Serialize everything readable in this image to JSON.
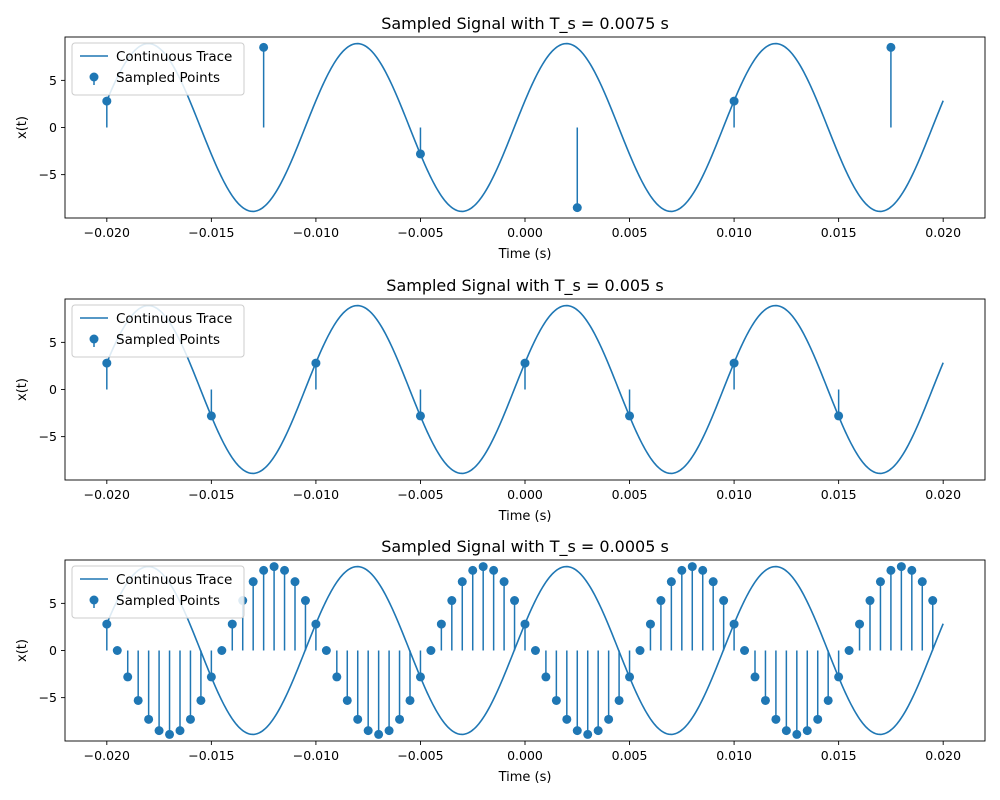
{
  "chart_data": [
    {
      "type": "line",
      "title": "Sampled Signal with T_s = 0.0075 s",
      "xlabel": "Time (s)",
      "ylabel": "x(t)",
      "xlim": [
        -0.022,
        0.022
      ],
      "ylim": [
        -9.6,
        9.6
      ],
      "xticks": [
        -0.02,
        -0.015,
        -0.01,
        -0.005,
        0.0,
        0.005,
        0.01,
        0.015,
        0.02
      ],
      "xtick_labels": [
        "−0.020",
        "−0.015",
        "−0.010",
        "−0.005",
        "0.000",
        "0.005",
        "0.010",
        "0.015",
        "0.020"
      ],
      "yticks": [
        -5,
        0,
        5
      ],
      "ytick_labels": [
        "−5",
        "0",
        "5"
      ],
      "grid": false,
      "legend_position": "top-left",
      "color": "#1f77b4",
      "continuous": {
        "name": "Continuous Trace",
        "amplitude": 8.9,
        "frequency_hz": 100,
        "phase_rad": 0.325,
        "t_range": [
          -0.02,
          0.02
        ]
      },
      "sampled": {
        "name": "Sampled Points",
        "x": [
          -0.02,
          -0.0125,
          -0.005,
          0.0025,
          0.01,
          0.0175
        ],
        "y": [
          2.8,
          8.5,
          -2.8,
          -8.5,
          2.8,
          8.5
        ]
      }
    },
    {
      "type": "line",
      "title": "Sampled Signal with T_s = 0.005 s",
      "xlabel": "Time (s)",
      "ylabel": "x(t)",
      "xlim": [
        -0.022,
        0.022
      ],
      "ylim": [
        -9.6,
        9.6
      ],
      "xticks": [
        -0.02,
        -0.015,
        -0.01,
        -0.005,
        0.0,
        0.005,
        0.01,
        0.015,
        0.02
      ],
      "xtick_labels": [
        "−0.020",
        "−0.015",
        "−0.010",
        "−0.005",
        "0.000",
        "0.005",
        "0.010",
        "0.015",
        "0.020"
      ],
      "yticks": [
        -5,
        0,
        5
      ],
      "ytick_labels": [
        "−5",
        "0",
        "5"
      ],
      "grid": false,
      "legend_position": "top-left",
      "color": "#1f77b4",
      "continuous": {
        "name": "Continuous Trace",
        "amplitude": 8.9,
        "frequency_hz": 100,
        "phase_rad": 0.325,
        "t_range": [
          -0.02,
          0.02
        ]
      },
      "sampled": {
        "name": "Sampled Points",
        "x": [
          -0.02,
          -0.015,
          -0.01,
          -0.005,
          0.0,
          0.005,
          0.01,
          0.015
        ],
        "y": [
          2.8,
          -2.8,
          2.8,
          -2.8,
          2.8,
          -2.8,
          2.8,
          -2.8
        ]
      }
    },
    {
      "type": "line",
      "title": "Sampled Signal with T_s = 0.0005 s",
      "xlabel": "Time (s)",
      "ylabel": "x(t)",
      "xlim": [
        -0.022,
        0.022
      ],
      "ylim": [
        -9.6,
        9.6
      ],
      "xticks": [
        -0.02,
        -0.015,
        -0.01,
        -0.005,
        0.0,
        0.005,
        0.01,
        0.015,
        0.02
      ],
      "xtick_labels": [
        "−0.020",
        "−0.015",
        "−0.010",
        "−0.005",
        "0.000",
        "0.005",
        "0.010",
        "0.015",
        "0.020"
      ],
      "yticks": [
        -5,
        0,
        5
      ],
      "ytick_labels": [
        "−5",
        "0",
        "5"
      ],
      "grid": false,
      "legend_position": "top-left",
      "color": "#1f77b4",
      "continuous": {
        "name": "Continuous Trace",
        "amplitude": 8.9,
        "frequency_hz": 100,
        "phase_rad": 0.325,
        "t_range": [
          -0.02,
          0.02
        ]
      },
      "sampled": {
        "name": "Sampled Points",
        "x": [
          -0.02,
          -0.0195,
          -0.019,
          -0.0185,
          -0.018,
          -0.0175,
          -0.017,
          -0.0165,
          -0.016,
          -0.0155,
          -0.015,
          -0.0145,
          -0.014,
          -0.0135,
          -0.013,
          -0.0125,
          -0.012,
          -0.0115,
          -0.011,
          -0.0105,
          -0.01,
          -0.0095,
          -0.009,
          -0.0085,
          -0.008,
          -0.0075,
          -0.007,
          -0.0065,
          -0.006,
          -0.0055,
          -0.005,
          -0.0045,
          -0.004,
          -0.0035,
          -0.003,
          -0.0025,
          -0.002,
          -0.0015,
          -0.001,
          -0.0005,
          0.0,
          0.0005,
          0.001,
          0.0015,
          0.002,
          0.0025,
          0.003,
          0.0035,
          0.004,
          0.0045,
          0.005,
          0.0055,
          0.006,
          0.0065,
          0.007,
          0.0075,
          0.008,
          0.0085,
          0.009,
          0.0095,
          0.01,
          0.0105,
          0.011,
          0.0115,
          0.012,
          0.0125,
          0.013,
          0.0135,
          0.014,
          0.0145,
          0.015,
          0.0155,
          0.016,
          0.0165,
          0.017,
          0.0175,
          0.018,
          0.0185,
          0.019,
          0.0195
        ],
        "y": [
          2.8,
          0.0,
          -2.8,
          -5.3,
          -7.3,
          -8.5,
          -8.9,
          -8.5,
          -7.3,
          -5.3,
          -2.8,
          0.0,
          2.8,
          5.3,
          7.3,
          8.5,
          8.9,
          8.5,
          7.3,
          5.3,
          2.8,
          0.0,
          -2.8,
          -5.3,
          -7.3,
          -8.5,
          -8.9,
          -8.5,
          -7.3,
          -5.3,
          -2.8,
          0.0,
          2.8,
          5.3,
          7.3,
          8.5,
          8.9,
          8.5,
          7.3,
          5.3,
          2.8,
          0.0,
          -2.8,
          -5.3,
          -7.3,
          -8.5,
          -8.9,
          -8.5,
          -7.3,
          -5.3,
          -2.8,
          0.0,
          2.8,
          5.3,
          7.3,
          8.5,
          8.9,
          8.5,
          7.3,
          5.3,
          2.8,
          0.0,
          -2.8,
          -5.3,
          -7.3,
          -8.5,
          -8.9,
          -8.5,
          -7.3,
          -5.3,
          -2.8,
          0.0,
          2.8,
          5.3,
          7.3,
          8.5,
          8.9,
          8.5,
          7.3,
          5.3
        ]
      }
    }
  ]
}
